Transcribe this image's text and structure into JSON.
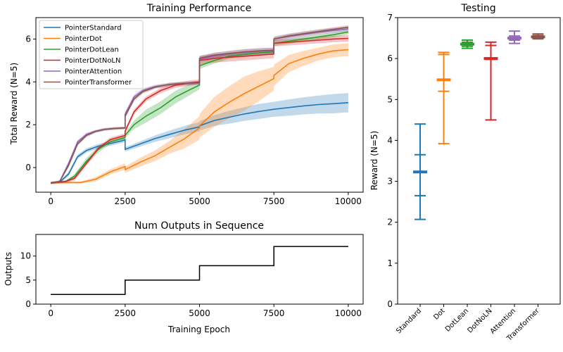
{
  "chart_data": [
    {
      "type": "line",
      "title": "Training Performance",
      "xlabel": "",
      "ylabel": "Total Reward (N=5)",
      "xlim": [
        -500,
        10500
      ],
      "ylim": [
        -1.15,
        7.0
      ],
      "xticks": [
        0,
        2500,
        5000,
        7500,
        10000
      ],
      "yticks": [
        0,
        2,
        4,
        6
      ],
      "legend": "top-left",
      "grid": false,
      "series": [
        {
          "name": "PointerStandard",
          "color": "#1f77b4",
          "x": [
            0,
            300,
            600,
            900,
            1200,
            1600,
            2000,
            2400,
            2499,
            2500,
            3000,
            3500,
            4000,
            4500,
            4999,
            5000,
            5500,
            6000,
            6500,
            7000,
            7500,
            8000,
            8500,
            9000,
            9500,
            10000
          ],
          "y": [
            -0.72,
            -0.68,
            -0.3,
            0.5,
            0.8,
            1.0,
            1.12,
            1.25,
            1.3,
            0.85,
            1.1,
            1.35,
            1.55,
            1.75,
            1.9,
            1.95,
            2.2,
            2.35,
            2.5,
            2.62,
            2.72,
            2.8,
            2.88,
            2.94,
            2.98,
            3.03
          ],
          "band": [
            0.05,
            0.05,
            0.1,
            0.1,
            0.1,
            0.1,
            0.1,
            0.1,
            0.1,
            0.1,
            0.12,
            0.15,
            0.18,
            0.2,
            0.22,
            0.22,
            0.25,
            0.3,
            0.32,
            0.35,
            0.35,
            0.38,
            0.4,
            0.42,
            0.45,
            0.45
          ]
        },
        {
          "name": "PointerDot",
          "color": "#ff7f0e",
          "x": [
            0,
            500,
            1000,
            1500,
            2000,
            2499,
            2500,
            3000,
            3500,
            4000,
            4500,
            4999,
            5000,
            5500,
            6000,
            6500,
            7000,
            7499,
            7500,
            8000,
            8500,
            9000,
            9500,
            10000
          ],
          "y": [
            -0.72,
            -0.7,
            -0.7,
            -0.55,
            -0.2,
            0.05,
            -0.1,
            0.25,
            0.55,
            0.95,
            1.35,
            1.85,
            1.95,
            2.6,
            3.05,
            3.45,
            3.8,
            4.15,
            4.3,
            4.85,
            5.1,
            5.3,
            5.45,
            5.5
          ],
          "band": [
            0.05,
            0.05,
            0.05,
            0.1,
            0.12,
            0.15,
            0.15,
            0.2,
            0.25,
            0.3,
            0.45,
            0.55,
            0.55,
            0.7,
            0.75,
            0.8,
            0.7,
            0.55,
            0.5,
            0.4,
            0.35,
            0.3,
            0.3,
            0.3
          ]
        },
        {
          "name": "PointerDotLean",
          "color": "#2ca02c",
          "x": [
            0,
            500,
            800,
            1200,
            1600,
            2000,
            2499,
            2500,
            2800,
            3200,
            3700,
            4200,
            4700,
            4999,
            5000,
            5500,
            6000,
            6500,
            7000,
            7499,
            7500,
            8000,
            8500,
            9000,
            9500,
            10000
          ],
          "y": [
            -0.72,
            -0.65,
            -0.4,
            0.3,
            0.85,
            1.2,
            1.4,
            1.5,
            2.0,
            2.4,
            2.8,
            3.3,
            3.65,
            3.85,
            4.75,
            5.0,
            5.2,
            5.28,
            5.35,
            5.4,
            5.8,
            5.9,
            6.0,
            6.1,
            6.2,
            6.33
          ],
          "band": [
            0.05,
            0.05,
            0.1,
            0.15,
            0.15,
            0.1,
            0.1,
            0.1,
            0.2,
            0.3,
            0.3,
            0.3,
            0.25,
            0.2,
            0.15,
            0.15,
            0.12,
            0.12,
            0.12,
            0.12,
            0.12,
            0.12,
            0.12,
            0.12,
            0.12,
            0.12
          ]
        },
        {
          "name": "PointerDotNoLN",
          "color": "#d62728",
          "x": [
            0,
            500,
            800,
            1200,
            1600,
            2000,
            2499,
            2500,
            2800,
            3200,
            3700,
            4200,
            4700,
            4999,
            5000,
            5500,
            6000,
            6500,
            7000,
            7499,
            7500,
            8000,
            8500,
            9000,
            9500,
            10000
          ],
          "y": [
            -0.72,
            -0.65,
            -0.5,
            0.2,
            0.9,
            1.3,
            1.5,
            1.7,
            2.6,
            3.2,
            3.6,
            3.85,
            3.95,
            4.0,
            5.0,
            5.1,
            5.15,
            5.2,
            5.25,
            5.3,
            5.8,
            5.85,
            5.9,
            5.95,
            6.0,
            6.03
          ],
          "band": [
            0.05,
            0.05,
            0.1,
            0.1,
            0.1,
            0.1,
            0.1,
            0.1,
            0.12,
            0.12,
            0.12,
            0.12,
            0.12,
            0.12,
            0.2,
            0.2,
            0.2,
            0.2,
            0.2,
            0.2,
            0.15,
            0.15,
            0.15,
            0.15,
            0.15,
            0.15
          ]
        },
        {
          "name": "PointerAttention",
          "color": "#9467bd",
          "x": [
            0,
            300,
            600,
            900,
            1200,
            1500,
            1800,
            2100,
            2499,
            2500,
            2800,
            3100,
            3500,
            4000,
            4500,
            4999,
            5000,
            5500,
            6000,
            6500,
            7000,
            7499,
            7500,
            8000,
            8500,
            9000,
            9500,
            10000
          ],
          "y": [
            -0.72,
            -0.65,
            0.2,
            1.2,
            1.55,
            1.7,
            1.78,
            1.82,
            1.85,
            2.5,
            3.3,
            3.6,
            3.78,
            3.88,
            3.92,
            3.95,
            5.05,
            5.2,
            5.3,
            5.38,
            5.42,
            5.45,
            6.0,
            6.12,
            6.22,
            6.32,
            6.4,
            6.47
          ],
          "band": [
            0.05,
            0.05,
            0.08,
            0.08,
            0.08,
            0.06,
            0.06,
            0.06,
            0.06,
            0.1,
            0.1,
            0.1,
            0.08,
            0.08,
            0.08,
            0.08,
            0.15,
            0.15,
            0.15,
            0.15,
            0.15,
            0.15,
            0.12,
            0.12,
            0.12,
            0.12,
            0.12,
            0.12
          ]
        },
        {
          "name": "PointerTransformer",
          "color": "#8c564b",
          "x": [
            0,
            300,
            600,
            900,
            1200,
            1500,
            1800,
            2100,
            2499,
            2500,
            2800,
            3100,
            3500,
            4000,
            4500,
            4999,
            5000,
            5500,
            6000,
            6500,
            7000,
            7499,
            7500,
            8000,
            8500,
            9000,
            9500,
            10000
          ],
          "y": [
            -0.72,
            -0.65,
            0.1,
            1.1,
            1.5,
            1.68,
            1.78,
            1.82,
            1.85,
            2.4,
            3.2,
            3.55,
            3.75,
            3.88,
            3.93,
            3.97,
            5.1,
            5.25,
            5.33,
            5.4,
            5.45,
            5.48,
            6.0,
            6.15,
            6.25,
            6.35,
            6.45,
            6.55
          ],
          "band": [
            0.05,
            0.05,
            0.08,
            0.08,
            0.08,
            0.06,
            0.06,
            0.06,
            0.06,
            0.1,
            0.1,
            0.1,
            0.08,
            0.08,
            0.08,
            0.08,
            0.12,
            0.12,
            0.12,
            0.12,
            0.12,
            0.12,
            0.1,
            0.1,
            0.1,
            0.1,
            0.1,
            0.1
          ]
        }
      ]
    },
    {
      "type": "line",
      "title": "Num Outputs in Sequence",
      "xlabel": "Training Epoch",
      "ylabel": "Outputs",
      "xlim": [
        -500,
        10500
      ],
      "ylim": [
        0,
        14.5
      ],
      "xticks": [
        0,
        2500,
        5000,
        7500,
        10000
      ],
      "yticks": [
        0,
        5,
        10
      ],
      "color": "#000000",
      "x": [
        0,
        2500,
        2500,
        5000,
        5000,
        7500,
        7500,
        10000
      ],
      "y": [
        2,
        2,
        5,
        5,
        8,
        8,
        12,
        12
      ]
    },
    {
      "type": "box",
      "title": "Testing",
      "xlabel": "",
      "ylabel": "Reward (N=5)",
      "ylim": [
        0,
        7
      ],
      "yticks": [
        0,
        1,
        2,
        3,
        4,
        5,
        6,
        7
      ],
      "categories": [
        "Standard",
        "Dot",
        "DotLean",
        "DotNoLN",
        "Attention",
        "Transformer"
      ],
      "colors": [
        "#1f77b4",
        "#ff7f0e",
        "#2ca02c",
        "#d62728",
        "#9467bd",
        "#8c564b"
      ],
      "min": [
        2.07,
        3.92,
        6.25,
        4.5,
        6.37,
        6.48
      ],
      "q1": [
        2.65,
        5.2,
        6.3,
        5.98,
        6.45,
        6.5
      ],
      "median": [
        3.23,
        5.48,
        6.35,
        6.0,
        6.5,
        6.53
      ],
      "q3": [
        3.65,
        6.1,
        6.4,
        6.32,
        6.55,
        6.56
      ],
      "max": [
        4.4,
        6.15,
        6.45,
        6.4,
        6.67,
        6.6
      ]
    }
  ]
}
